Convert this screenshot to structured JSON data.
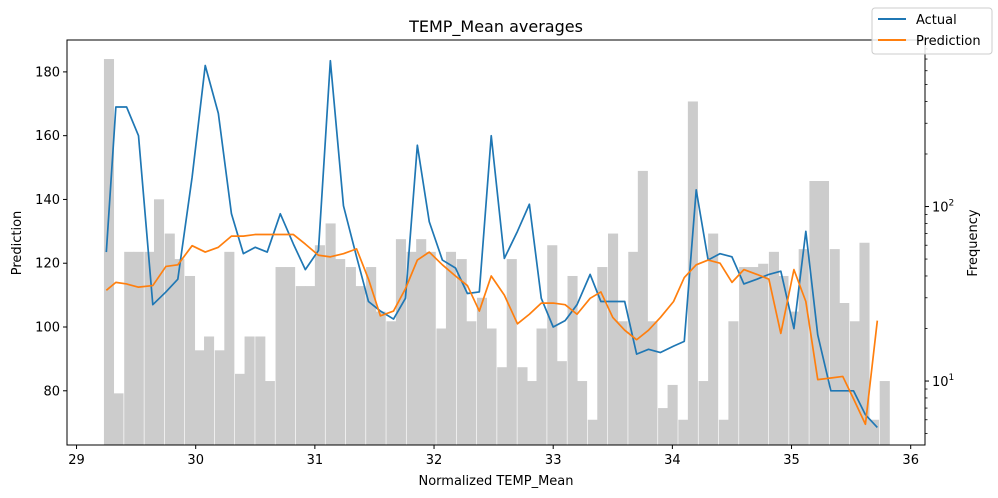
{
  "chart_data": {
    "type": "line",
    "title": "TEMP_Mean averages",
    "xlabel": "Normalized TEMP_Mean",
    "ylabel": "Prediction",
    "y2label": "Frequency",
    "xlim": [
      28.92,
      36.12
    ],
    "ylim": [
      63,
      190
    ],
    "y2lim_log": [
      4.3,
      900
    ],
    "x_ticks": [
      29,
      30,
      31,
      32,
      33,
      34,
      35,
      36
    ],
    "y_ticks": [
      80,
      100,
      120,
      140,
      160,
      180
    ],
    "y2_ticks": [
      {
        "value": 10,
        "label": "10",
        "sup": "1"
      },
      {
        "value": 100,
        "label": "10",
        "sup": "2"
      }
    ],
    "legend_position": "top-right",
    "colors": {
      "actual": "#1f77b4",
      "prediction": "#ff7f0e",
      "histogram": "#cccccc"
    },
    "series": [
      {
        "name": "Actual",
        "x": [
          29.25,
          29.33,
          29.42,
          29.52,
          29.64,
          29.75,
          29.85,
          29.97,
          30.08,
          30.19,
          30.3,
          30.4,
          30.5,
          30.6,
          30.71,
          30.82,
          30.92,
          31.03,
          31.13,
          31.24,
          31.35,
          31.45,
          31.55,
          31.66,
          31.76,
          31.86,
          31.96,
          32.07,
          32.18,
          32.28,
          32.38,
          32.48,
          32.59,
          32.7,
          32.8,
          32.9,
          33.0,
          33.1,
          33.2,
          33.31,
          33.4,
          33.5,
          33.6,
          33.7,
          33.8,
          33.9,
          34.01,
          34.1,
          34.2,
          34.3,
          34.4,
          34.5,
          34.6,
          34.71,
          34.81,
          34.91,
          35.02,
          35.12,
          35.22,
          35.33,
          35.43,
          35.52,
          35.62,
          35.72
        ],
        "values": [
          123.5,
          169,
          169,
          160,
          107,
          111,
          115,
          147,
          182,
          167,
          135.5,
          123,
          125,
          123.5,
          135.5,
          126,
          118,
          124,
          183.5,
          138,
          122,
          108,
          105,
          102.5,
          109,
          157,
          133,
          121,
          118.5,
          110.5,
          111,
          160,
          121.5,
          130,
          138.5,
          109,
          100,
          102,
          107,
          116.5,
          108,
          108,
          108,
          91.5,
          93,
          92,
          94,
          95.5,
          143,
          121,
          123,
          122,
          113.5,
          115,
          116.5,
          117.5,
          99.5,
          130,
          97.5,
          80,
          80,
          80,
          72.5,
          68.5
        ]
      },
      {
        "name": "Prediction",
        "x": [
          29.25,
          29.33,
          29.42,
          29.52,
          29.64,
          29.75,
          29.85,
          29.97,
          30.08,
          30.19,
          30.3,
          30.4,
          30.5,
          30.6,
          30.71,
          30.82,
          30.92,
          31.03,
          31.13,
          31.24,
          31.35,
          31.45,
          31.55,
          31.66,
          31.76,
          31.86,
          31.96,
          32.07,
          32.18,
          32.28,
          32.38,
          32.48,
          32.59,
          32.7,
          32.8,
          32.9,
          33.0,
          33.1,
          33.2,
          33.31,
          33.4,
          33.5,
          33.6,
          33.7,
          33.8,
          33.9,
          34.01,
          34.1,
          34.2,
          34.3,
          34.4,
          34.5,
          34.6,
          34.71,
          34.81,
          34.91,
          35.02,
          35.12,
          35.22,
          35.33,
          35.43,
          35.52,
          35.62,
          35.72
        ],
        "values": [
          111.5,
          114,
          113.5,
          112.5,
          113,
          119,
          119.5,
          125.5,
          123.5,
          125,
          128.5,
          128.5,
          129,
          129,
          129,
          129,
          126,
          122.5,
          122,
          123,
          124.5,
          115,
          103.5,
          105,
          112,
          121,
          123.5,
          119.5,
          116,
          113,
          105,
          116,
          110,
          101,
          104,
          107.5,
          107.5,
          107,
          104,
          109,
          111,
          103,
          99,
          96,
          99,
          103,
          108,
          115.5,
          119.5,
          121,
          120,
          114,
          118,
          116.5,
          115,
          98,
          118,
          108,
          83.5,
          84,
          84.5,
          77.5,
          69.5,
          102
        ]
      }
    ],
    "histogram": {
      "bin_width": 0.0845,
      "bin_starts": [
        29.23,
        29.31,
        29.4,
        29.48,
        29.57,
        29.65,
        29.74,
        29.82,
        29.91,
        29.99,
        30.07,
        30.16,
        30.24,
        30.33,
        30.41,
        30.5,
        30.58,
        30.67,
        30.75,
        30.84,
        30.92,
        31.0,
        31.09,
        31.17,
        31.26,
        31.34,
        31.43,
        31.51,
        31.6,
        31.68,
        31.77,
        31.85,
        31.93,
        32.02,
        32.1,
        32.19,
        32.27,
        32.36,
        32.44,
        32.53,
        32.61,
        32.7,
        32.78,
        32.86,
        32.95,
        33.03,
        33.12,
        33.2,
        33.29,
        33.37,
        33.46,
        33.54,
        33.63,
        33.71,
        33.79,
        33.88,
        33.96,
        34.05,
        34.13,
        34.22,
        34.3,
        34.39,
        34.47,
        34.56,
        34.64,
        34.72,
        34.81,
        34.89,
        34.98,
        35.06,
        35.15,
        35.23,
        35.32,
        35.4,
        35.49,
        35.57,
        35.65,
        35.74
      ],
      "frequencies": [
        700,
        8.5,
        55,
        55,
        55,
        110,
        70,
        50,
        40,
        15,
        18,
        15,
        55,
        11,
        18,
        18,
        10,
        45,
        45,
        35,
        35,
        60,
        80,
        50,
        45,
        35,
        45,
        25,
        22,
        65,
        55,
        65,
        55,
        20,
        55,
        50,
        22,
        30,
        20,
        12,
        50,
        12,
        10,
        20,
        60,
        13,
        40,
        10,
        6,
        45,
        70,
        22,
        55,
        160,
        22,
        7,
        9.5,
        6,
        400,
        10,
        70,
        6,
        22,
        45,
        45,
        47,
        55,
        40,
        25,
        57,
        140,
        140,
        57,
        28,
        22,
        62,
        6,
        10
      ]
    }
  }
}
